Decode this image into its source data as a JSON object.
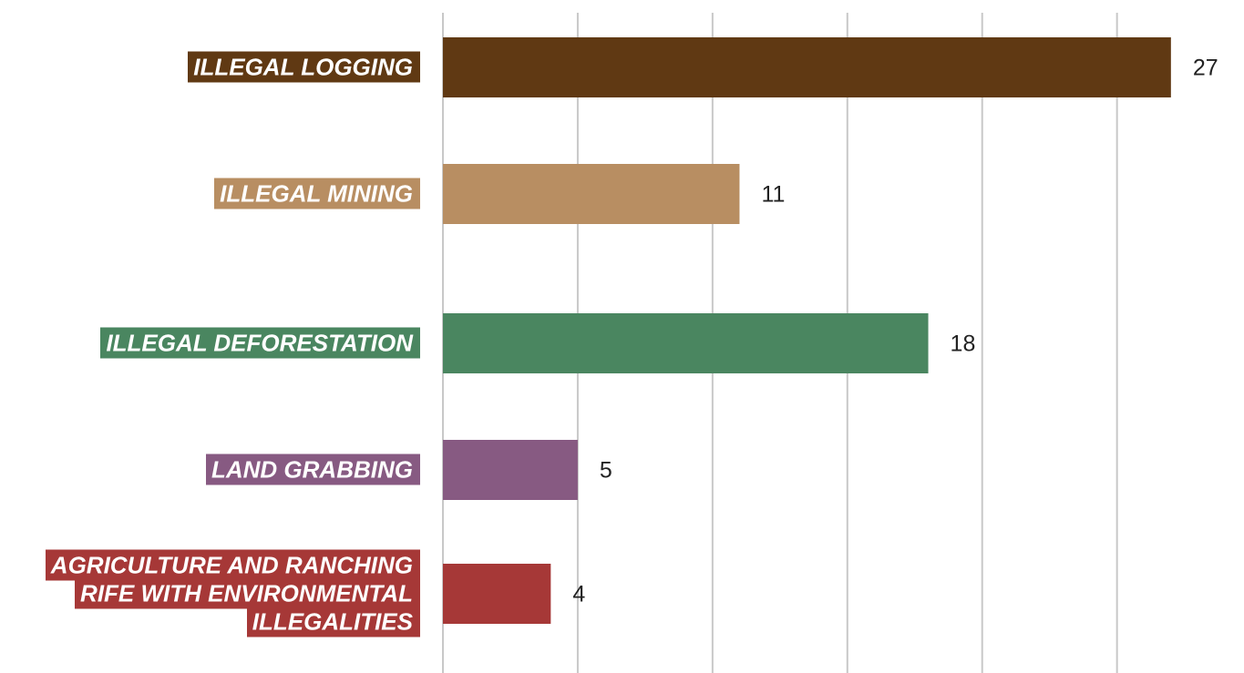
{
  "chart_data": {
    "type": "barh",
    "categories": [
      "ILLEGAL LOGGING",
      "ILLEGAL MINING",
      "ILLEGAL DEFORESTATION",
      "LAND GRABBING",
      "AGRICULTURE AND RANCHING RIFE WITH ENVIRONMENTAL ILLEGALITIES"
    ],
    "values": [
      27,
      11,
      18,
      5,
      4
    ],
    "colors": [
      "#603913",
      "#b88e62",
      "#4a8660",
      "#875a82",
      "#a63837"
    ],
    "xlim": [
      0,
      29
    ],
    "xticks": [
      0,
      5,
      10,
      15,
      20,
      25
    ],
    "grid": true
  }
}
